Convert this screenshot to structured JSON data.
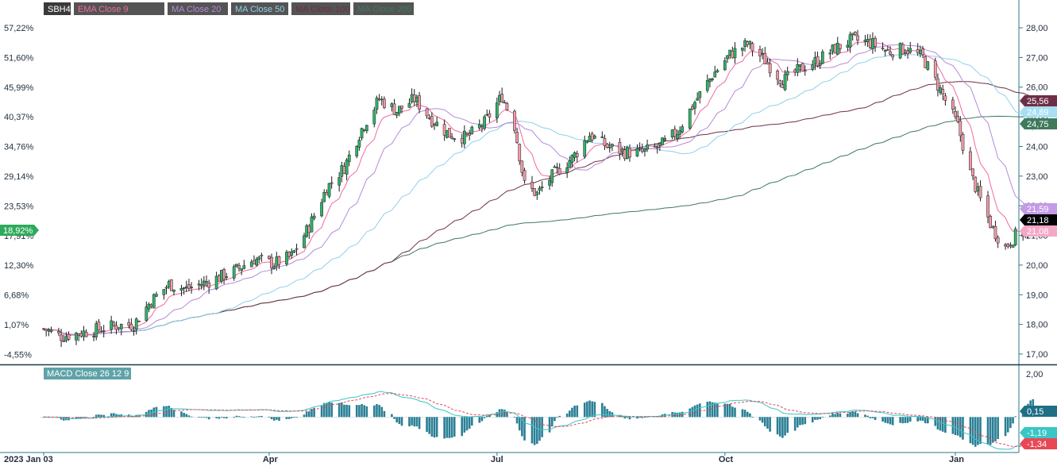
{
  "chart_data": [
    {
      "type": "candlestick",
      "symbol": "SBH4",
      "legend": [
        {
          "label": "SBH4",
          "color": "#3a3a3a"
        },
        {
          "label": "EMA Close 9",
          "color": "#f06aa0"
        },
        {
          "label": "MA Close 20",
          "color": "#b58ad8"
        },
        {
          "label": "MA Close 50",
          "color": "#8fd0ea"
        },
        {
          "label": "MA Close 100",
          "color": "#6e2f46"
        },
        {
          "label": "MA Close 200",
          "color": "#3f7a5b"
        }
      ],
      "left_axis_ticks": [
        "57,22%",
        "51,60%",
        "45,99%",
        "40,37%",
        "34,76%",
        "29,14%",
        "23,53%",
        "17,91%",
        "12,30%",
        "6,68%",
        "1,07%",
        "-4,55%"
      ],
      "right_axis_ticks": [
        "28,00",
        "27,00",
        "26,00",
        "25,00",
        "24,00",
        "23,00",
        "22,00",
        "21,00",
        "20,00",
        "19,00",
        "18,00",
        "17,00"
      ],
      "ylim": [
        17.0,
        28.0
      ],
      "x_labels": [
        "2023 Jan 03",
        "Apr",
        "Jul",
        "Oct",
        "Jan"
      ],
      "x_label_dates": [
        "2023-01-03",
        "2023-04-03",
        "2023-07-03",
        "2023-10-02",
        "2024-01-02"
      ],
      "left_tag": {
        "label": "18,92%",
        "color": "#2eaa5c"
      },
      "value_tags": [
        {
          "label": "25,56",
          "color": "#6e2f46",
          "value": 25.56
        },
        {
          "label": "24,89",
          "color": "#a8dff3",
          "value": 24.89
        },
        {
          "label": "24,75",
          "color": "#3f7a5b",
          "value": 24.75
        },
        {
          "label": "21,59",
          "color": "#c39be6",
          "value": 21.59
        },
        {
          "label": "21,18",
          "color": "#000000",
          "value": 21.18
        },
        {
          "label": "21,08",
          "color": "#f5a7c6",
          "value": 21.08
        }
      ],
      "price_keypoints": [
        [
          "2023-01-03",
          17.85
        ],
        [
          "2023-01-10",
          17.6
        ],
        [
          "2023-01-20",
          17.75
        ],
        [
          "2023-01-31",
          17.95
        ],
        [
          "2023-02-08",
          18.0
        ],
        [
          "2023-02-15",
          18.8
        ],
        [
          "2023-02-22",
          19.35
        ],
        [
          "2023-03-01",
          19.2
        ],
        [
          "2023-03-10",
          19.45
        ],
        [
          "2023-03-20",
          19.8
        ],
        [
          "2023-03-28",
          20.2
        ],
        [
          "2023-04-05",
          20.05
        ],
        [
          "2023-04-12",
          20.3
        ],
        [
          "2023-04-19",
          21.3
        ],
        [
          "2023-04-26",
          22.6
        ],
        [
          "2023-05-03",
          23.3
        ],
        [
          "2023-05-10",
          24.6
        ],
        [
          "2023-05-17",
          25.6
        ],
        [
          "2023-05-24",
          25.2
        ],
        [
          "2023-05-31",
          25.6
        ],
        [
          "2023-06-07",
          24.9
        ],
        [
          "2023-06-14",
          24.4
        ],
        [
          "2023-06-21",
          24.3
        ],
        [
          "2023-06-28",
          24.8
        ],
        [
          "2023-07-05",
          25.7
        ],
        [
          "2023-07-10",
          24.7
        ],
        [
          "2023-07-14",
          22.7
        ],
        [
          "2023-07-19",
          22.4
        ],
        [
          "2023-07-26",
          23.1
        ],
        [
          "2023-08-02",
          23.6
        ],
        [
          "2023-08-09",
          24.4
        ],
        [
          "2023-08-16",
          24.0
        ],
        [
          "2023-08-23",
          23.8
        ],
        [
          "2023-08-30",
          23.8
        ],
        [
          "2023-09-06",
          24.0
        ],
        [
          "2023-09-13",
          24.5
        ],
        [
          "2023-09-20",
          25.5
        ],
        [
          "2023-09-27",
          26.4
        ],
        [
          "2023-10-04",
          27.1
        ],
        [
          "2023-10-11",
          27.45
        ],
        [
          "2023-10-18",
          26.9
        ],
        [
          "2023-10-25",
          26.2
        ],
        [
          "2023-11-01",
          26.6
        ],
        [
          "2023-11-08",
          26.9
        ],
        [
          "2023-11-15",
          27.3
        ],
        [
          "2023-11-22",
          27.6
        ],
        [
          "2023-11-29",
          27.5
        ],
        [
          "2023-12-06",
          27.2
        ],
        [
          "2023-12-13",
          27.3
        ],
        [
          "2023-12-20",
          27.0
        ],
        [
          "2023-12-27",
          25.9
        ],
        [
          "2024-01-03",
          24.7
        ],
        [
          "2024-01-08",
          23.1
        ],
        [
          "2024-01-12",
          22.2
        ],
        [
          "2024-01-17",
          21.2
        ],
        [
          "2024-01-22",
          20.6
        ],
        [
          "2024-01-26",
          21.0
        ],
        [
          "2024-01-30",
          21.1
        ],
        [
          "2024-02-02",
          21.18
        ]
      ]
    },
    {
      "type": "line",
      "title": "MACD Close 26 12 9",
      "title_color": "#5fa3a8",
      "right_axis_ticks": [
        "2,00"
      ],
      "ylim": [
        -1.5,
        2.0
      ],
      "value_tags": [
        {
          "label": "0,15",
          "color": "#1f6f86",
          "value": 0.15
        },
        {
          "label": "-1,19",
          "color": "#38c6c6",
          "value": -1.19
        },
        {
          "label": "-1,34",
          "color": "#e84855",
          "value": -1.34
        }
      ]
    }
  ]
}
